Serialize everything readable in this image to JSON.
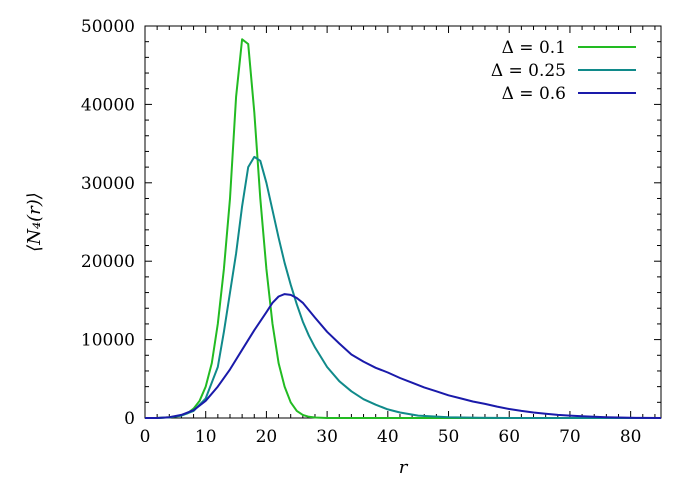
{
  "chart_data": {
    "type": "line",
    "xlabel": "r",
    "ylabel": "⟨N₄(r)⟩",
    "xlim": [
      0,
      85
    ],
    "ylim": [
      0,
      50000
    ],
    "xticks": [
      0,
      10,
      20,
      30,
      40,
      50,
      60,
      70,
      80
    ],
    "yticks": [
      0,
      10000,
      20000,
      30000,
      40000,
      50000
    ],
    "grid": false,
    "legend_position": "top-right",
    "series": [
      {
        "name": "Δ = 0.1",
        "color": "#22bb22",
        "x": [
          0,
          2,
          4,
          5,
          6,
          7,
          8,
          9,
          10,
          11,
          12,
          13,
          14,
          15,
          16,
          17,
          18,
          19,
          20,
          21,
          22,
          23,
          24,
          25,
          26,
          27,
          28,
          29,
          30,
          32,
          35,
          40,
          85
        ],
        "y": [
          0,
          0,
          100,
          200,
          350,
          600,
          1200,
          2200,
          4000,
          7000,
          12000,
          19000,
          28000,
          41000,
          48300,
          47700,
          39000,
          28000,
          19000,
          12000,
          7000,
          4000,
          2000,
          900,
          400,
          150,
          60,
          20,
          0,
          0,
          0,
          0,
          0
        ]
      },
      {
        "name": "Δ = 0.25",
        "color": "#108a8a",
        "x": [
          0,
          2,
          4,
          6,
          8,
          10,
          12,
          13,
          14,
          15,
          16,
          17,
          18,
          19,
          20,
          21,
          22,
          23,
          24,
          25,
          26,
          27,
          28,
          30,
          32,
          34,
          36,
          38,
          40,
          42,
          45,
          50,
          55,
          60,
          85
        ],
        "y": [
          0,
          0,
          80,
          300,
          900,
          2500,
          6500,
          11000,
          16000,
          21000,
          27000,
          32000,
          33300,
          32800,
          30000,
          26500,
          23000,
          19800,
          17000,
          14500,
          12300,
          10500,
          9000,
          6500,
          4700,
          3400,
          2400,
          1700,
          1100,
          700,
          300,
          100,
          30,
          0,
          0
        ]
      },
      {
        "name": "Δ = 0.6",
        "color": "#1a1aaa",
        "x": [
          0,
          2,
          4,
          6,
          8,
          10,
          12,
          14,
          16,
          18,
          20,
          21,
          22,
          23,
          24,
          25,
          26,
          28,
          30,
          32,
          34,
          36,
          38,
          40,
          42,
          44,
          46,
          48,
          50,
          52,
          54,
          56,
          58,
          60,
          62,
          64,
          66,
          68,
          70,
          72,
          74,
          76,
          78,
          80,
          82,
          85
        ],
        "y": [
          0,
          0,
          100,
          400,
          1000,
          2200,
          4000,
          6200,
          8700,
          11200,
          13500,
          14700,
          15500,
          15800,
          15700,
          15300,
          14700,
          12800,
          11000,
          9500,
          8100,
          7200,
          6400,
          5800,
          5100,
          4500,
          3900,
          3400,
          2900,
          2500,
          2100,
          1800,
          1450,
          1150,
          900,
          700,
          550,
          400,
          300,
          220,
          150,
          100,
          60,
          30,
          10,
          0
        ]
      }
    ]
  }
}
